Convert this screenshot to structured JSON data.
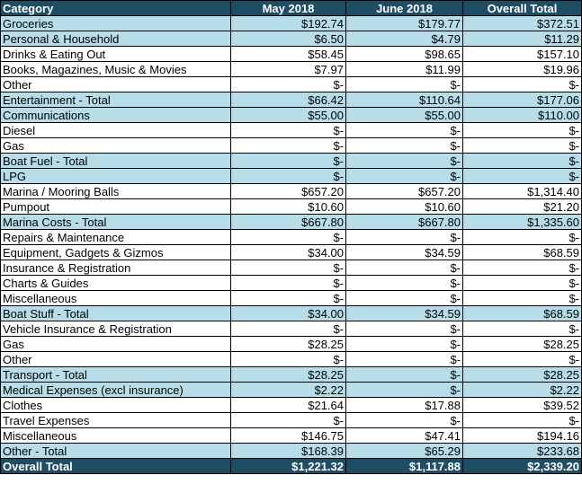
{
  "header": {
    "category": "Category",
    "may": "May 2018",
    "june": "June 2018",
    "overall": "Overall Total"
  },
  "rows": [
    {
      "category": "Groceries",
      "may": "$192.74",
      "june": "$179.77",
      "overall": "$372.51",
      "total": true
    },
    {
      "category": "Personal & Household",
      "may": "$6.50",
      "june": "$4.79",
      "overall": "$11.29",
      "total": true
    },
    {
      "category": "Drinks & Eating Out",
      "may": "$58.45",
      "june": "$98.65",
      "overall": "$157.10",
      "total": false
    },
    {
      "category": "Books, Magazines, Music & Movies",
      "may": "$7.97",
      "june": "$11.99",
      "overall": "$19.96",
      "total": false
    },
    {
      "category": "Other",
      "may": "$-",
      "june": "$-",
      "overall": "$-",
      "total": false
    },
    {
      "category": "Entertainment - Total",
      "may": "$66.42",
      "june": "$110.64",
      "overall": "$177.06",
      "total": true
    },
    {
      "category": "Communications",
      "may": "$55.00",
      "june": "$55.00",
      "overall": "$110.00",
      "total": true
    },
    {
      "category": "Diesel",
      "may": "$-",
      "june": "$-",
      "overall": "$-",
      "total": false
    },
    {
      "category": "Gas",
      "may": "$-",
      "june": "$-",
      "overall": "$-",
      "total": false
    },
    {
      "category": "Boat Fuel - Total",
      "may": "$-",
      "june": "$-",
      "overall": "$-",
      "total": true
    },
    {
      "category": "LPG",
      "may": "$-",
      "june": "$-",
      "overall": "$-",
      "total": true
    },
    {
      "category": "Marina / Mooring Balls",
      "may": "$657.20",
      "june": "$657.20",
      "overall": "$1,314.40",
      "total": false
    },
    {
      "category": "Pumpout",
      "may": "$10.60",
      "june": "$10.60",
      "overall": "$21.20",
      "total": false
    },
    {
      "category": "Marina Costs - Total",
      "may": "$667.80",
      "june": "$667.80",
      "overall": "$1,335.60",
      "total": true
    },
    {
      "category": "Repairs & Maintenance",
      "may": "$-",
      "june": "$-",
      "overall": "$-",
      "total": false
    },
    {
      "category": "Equipment, Gadgets & Gizmos",
      "may": "$34.00",
      "june": "$34.59",
      "overall": "$68.59",
      "total": false
    },
    {
      "category": "Insurance & Registration",
      "may": "$-",
      "june": "$-",
      "overall": "$-",
      "total": false
    },
    {
      "category": "Charts & Guides",
      "may": "$-",
      "june": "$-",
      "overall": "$-",
      "total": false
    },
    {
      "category": "Miscellaneous",
      "may": "$-",
      "june": "$-",
      "overall": "$-",
      "total": false
    },
    {
      "category": "Boat Stuff - Total",
      "may": "$34.00",
      "june": "$34.59",
      "overall": "$68.59",
      "total": true
    },
    {
      "category": "Vehicle Insurance & Registration",
      "may": "$-",
      "june": "$-",
      "overall": "$-",
      "total": false
    },
    {
      "category": "Gas",
      "may": "$28.25",
      "june": "$-",
      "overall": "$28.25",
      "total": false
    },
    {
      "category": "Other",
      "may": "$-",
      "june": "$-",
      "overall": "$-",
      "total": false
    },
    {
      "category": "Transport - Total",
      "may": "$28.25",
      "june": "$-",
      "overall": "$28.25",
      "total": true
    },
    {
      "category": "Medical Expenses (excl insurance)",
      "may": "$2.22",
      "june": "$-",
      "overall": "$2.22",
      "total": true
    },
    {
      "category": "Clothes",
      "may": "$21.64",
      "june": "$17.88",
      "overall": "$39.52",
      "total": false
    },
    {
      "category": "Travel Expenses",
      "may": "$-",
      "june": "$-",
      "overall": "$-",
      "total": false
    },
    {
      "category": "Miscellaneous",
      "may": "$146.75",
      "june": "$47.41",
      "overall": "$194.16",
      "total": false
    },
    {
      "category": "Other - Total",
      "may": "$168.39",
      "june": "$65.29",
      "overall": "$233.68",
      "total": true
    }
  ],
  "grand_total": {
    "category": "Overall Total",
    "may": "$1,221.32",
    "june": "$1,117.88",
    "overall": "$2,339.20"
  },
  "colors": {
    "header_bg": "#1f4e64",
    "total_row_bg": "#b7dde8"
  }
}
